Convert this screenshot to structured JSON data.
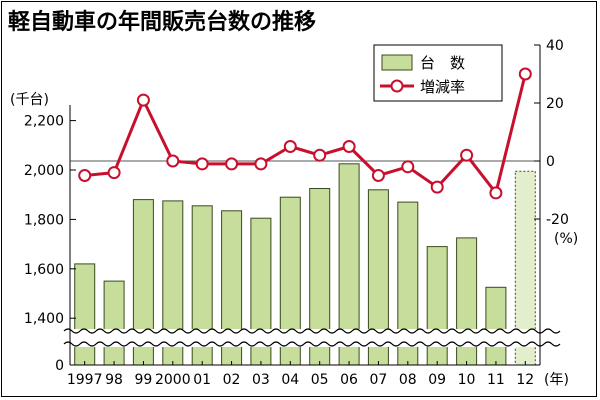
{
  "chart_data": {
    "type": "bar",
    "title": "軽自動車の年間販売台数の推移",
    "categories": [
      "1997",
      "98",
      "99",
      "2000",
      "01",
      "02",
      "03",
      "04",
      "05",
      "06",
      "07",
      "08",
      "09",
      "10",
      "11",
      "12"
    ],
    "x_unit": "(年)",
    "series": [
      {
        "name": "台　数",
        "type": "bar",
        "axis": "left",
        "unit": "(千台)",
        "values": [
          1620,
          1550,
          1880,
          1875,
          1855,
          1835,
          1805,
          1890,
          1925,
          2025,
          1920,
          1870,
          1690,
          1725,
          1525,
          1995
        ],
        "projected_last": true
      },
      {
        "name": "増減率",
        "type": "line",
        "axis": "right",
        "unit": "(%)",
        "values": [
          -5,
          -4,
          21,
          0,
          -1,
          -1,
          -1,
          5,
          2,
          5,
          -5,
          -2,
          -9,
          2,
          -11,
          30
        ]
      }
    ],
    "left_axis": {
      "ticks": [
        1400,
        1600,
        1800,
        2000,
        2200
      ],
      "tick_labels": [
        "1,400",
        "1,600",
        "1,800",
        "2,000",
        "2,200"
      ],
      "zero_label": "0",
      "axis_break": true,
      "unit_label": "(千台)"
    },
    "right_axis": {
      "ticks": [
        40,
        20,
        0,
        -20
      ],
      "tick_labels": [
        "40",
        "20",
        "0",
        "-20"
      ],
      "unit_label": "(%)"
    },
    "legend": {
      "position": "top-right",
      "items": [
        "台　数",
        "増減率"
      ]
    },
    "colors": {
      "bar_fill": "#c6dd9c",
      "bar_stroke": "#3b4a1e",
      "projected_fill": "#e3efcc",
      "line": "#c8102e",
      "marker_fill": "#ffffff"
    }
  }
}
